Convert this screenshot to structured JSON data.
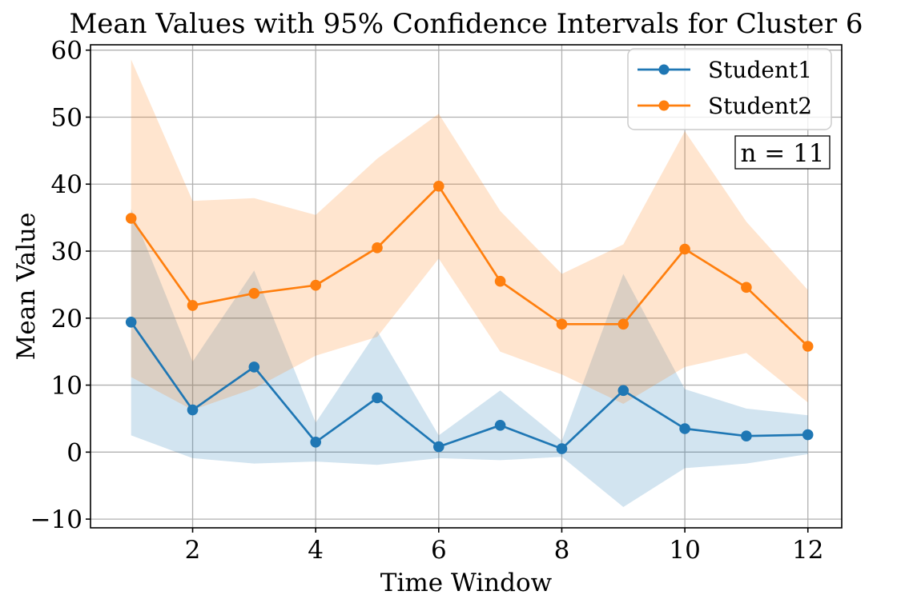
{
  "figure": {
    "title": "Mean Values with 95% Confidence Intervals for Cluster 6"
  },
  "chart_data": {
    "type": "line",
    "title": "Mean Values with 95% Confidence Intervals for Cluster 6",
    "xlabel": "Time Window",
    "ylabel": "Mean Value",
    "annotation": "n = 11",
    "x": [
      1,
      2,
      3,
      4,
      5,
      6,
      7,
      8,
      9,
      10,
      11,
      12
    ],
    "xticks": [
      2,
      4,
      6,
      8,
      10,
      12
    ],
    "yticks": [
      -10,
      0,
      10,
      20,
      30,
      40,
      50,
      60
    ],
    "xlim": [
      0.34,
      12.55
    ],
    "ylim": [
      -11.3,
      60.8
    ],
    "grid": true,
    "legend": {
      "position": "upper right",
      "entries": [
        "Student1",
        "Student2"
      ]
    },
    "series": [
      {
        "name": "Student1",
        "color": "#1f77b4",
        "fill_opacity": 0.2,
        "mean": [
          19.4,
          6.3,
          12.7,
          1.5,
          8.1,
          0.8,
          4.0,
          0.5,
          9.2,
          3.5,
          2.4,
          2.6
        ],
        "ci_lower": [
          2.5,
          -0.9,
          -1.7,
          -1.4,
          -1.9,
          -0.9,
          -1.2,
          -0.7,
          -8.2,
          -2.4,
          -1.7,
          -0.3
        ],
        "ci_upper": [
          36.3,
          13.5,
          27.1,
          4.4,
          18.1,
          2.5,
          9.2,
          1.7,
          26.6,
          9.4,
          6.5,
          5.5
        ]
      },
      {
        "name": "Student2",
        "color": "#ff7f0e",
        "fill_opacity": 0.2,
        "mean": [
          34.9,
          21.9,
          23.7,
          24.9,
          30.5,
          39.7,
          25.5,
          19.1,
          19.1,
          30.3,
          24.6,
          15.8
        ],
        "ci_lower": [
          11.2,
          6.3,
          9.5,
          14.4,
          17.2,
          28.9,
          15.0,
          11.6,
          7.2,
          12.7,
          14.8,
          7.4
        ],
        "ci_upper": [
          58.6,
          37.5,
          37.9,
          35.4,
          43.8,
          50.5,
          36.0,
          26.6,
          31.0,
          47.9,
          34.4,
          24.2
        ]
      }
    ],
    "colors": {
      "grid": "#b0b0b0",
      "spine": "#000000",
      "legend_border": "#cccccc"
    }
  }
}
